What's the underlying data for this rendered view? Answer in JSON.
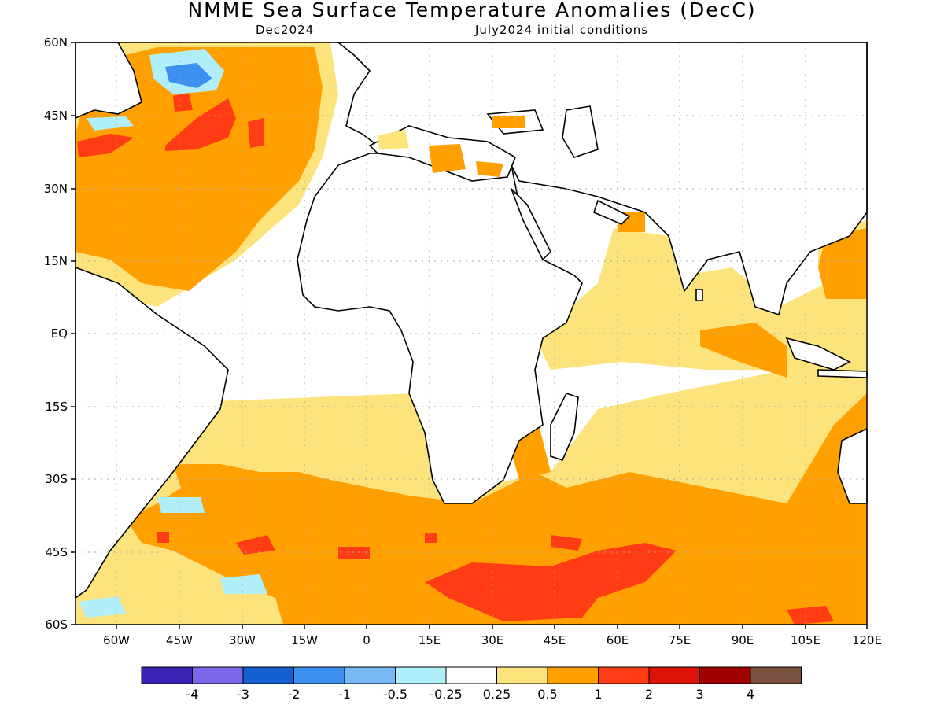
{
  "header": {
    "title": "NMME Sea Surface Temperature Anomalies (DecC)",
    "target_month": "Dec2024",
    "initial_conditions": "July2024 initial conditions"
  },
  "axes": {
    "lat_labels": [
      "60N",
      "45N",
      "30N",
      "15N",
      "EQ",
      "15S",
      "30S",
      "45S",
      "60S"
    ],
    "lon_labels": [
      "60W",
      "45W",
      "30W",
      "15W",
      "0",
      "15E",
      "30E",
      "45E",
      "60E",
      "75E",
      "90E",
      "105E",
      "120E"
    ]
  },
  "colorbar": {
    "colors": [
      "#3a22b4",
      "#7b68e8",
      "#1560d0",
      "#3c90f0",
      "#78b8f5",
      "#b0effa",
      "#ffffff",
      "#fde37c",
      "#ffa000",
      "#ff3c14",
      "#dc1408",
      "#a00000",
      "#7a5041"
    ],
    "labels": [
      "-4",
      "-3",
      "-2",
      "-1",
      "-0.5",
      "-0.25",
      "0.25",
      "0.5",
      "1",
      "2",
      "3",
      "4"
    ]
  },
  "palette": {
    "land_outline": "#000000",
    "grid": "#a8a8a8",
    "light_orange": "#fde37c",
    "orange": "#ffa000",
    "red_orange": "#ff3c14",
    "light_blue": "#b0effa",
    "mid_blue": "#3c90f0"
  }
}
